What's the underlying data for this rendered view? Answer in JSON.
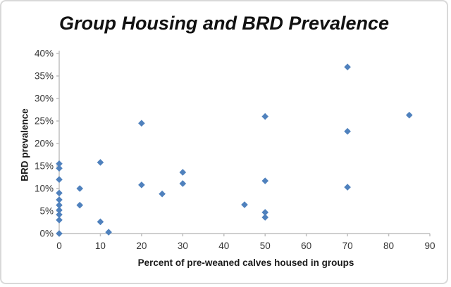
{
  "card": {
    "background": "#ffffff",
    "border_color": "#d9d9d9"
  },
  "chart_data": {
    "type": "scatter",
    "title": "Group Housing and BRD Prevalence",
    "xlabel": "Percent of pre-weaned calves housed in groups",
    "ylabel": "BRD prevalence",
    "xlim": [
      0,
      90
    ],
    "ylim": [
      0,
      40
    ],
    "x_ticks": [
      0,
      10,
      20,
      30,
      40,
      50,
      60,
      70,
      80,
      90
    ],
    "y_ticks": [
      0,
      5,
      10,
      15,
      20,
      25,
      30,
      35,
      40
    ],
    "y_tick_suffix": "%",
    "grid": false,
    "legend": "none",
    "marker": "diamond",
    "marker_color": "#4F81BD",
    "axis_color": "#bfbfbf",
    "tick_label_color": "#333333",
    "points": [
      [
        0,
        15.5
      ],
      [
        0,
        14.5
      ],
      [
        0,
        12.0
      ],
      [
        0,
        9.0
      ],
      [
        0,
        7.5
      ],
      [
        0,
        6.3
      ],
      [
        0,
        5.2
      ],
      [
        0,
        4.2
      ],
      [
        0,
        3.0
      ],
      [
        0,
        0.0
      ],
      [
        5,
        10.0
      ],
      [
        5,
        6.3
      ],
      [
        10,
        15.8
      ],
      [
        10,
        2.6
      ],
      [
        12,
        0.3
      ],
      [
        20,
        24.5
      ],
      [
        20,
        10.8
      ],
      [
        25,
        8.8
      ],
      [
        30,
        13.6
      ],
      [
        30,
        11.1
      ],
      [
        45,
        6.4
      ],
      [
        50,
        26.0
      ],
      [
        50,
        11.7
      ],
      [
        50,
        4.7
      ],
      [
        50,
        3.6
      ],
      [
        70,
        37.0
      ],
      [
        70,
        22.7
      ],
      [
        70,
        10.3
      ],
      [
        85,
        26.3
      ]
    ]
  }
}
